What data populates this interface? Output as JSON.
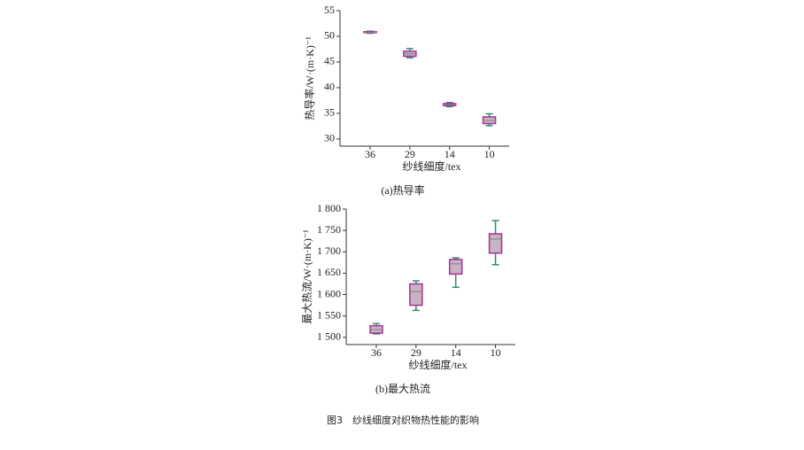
{
  "figure_caption": "图3　纱线细度对织物热性能的影响",
  "chart_data": [
    {
      "type": "box",
      "caption": "(a)热导率",
      "ylabel": "热导率/W·(m·K)⁻¹",
      "xlabel": "纱线细度/tex",
      "categories": [
        "36",
        "29",
        "14",
        "10"
      ],
      "min": [
        50.6,
        45.8,
        36.3,
        32.6
      ],
      "q1": [
        50.7,
        46.1,
        36.5,
        33.0
      ],
      "median": [
        50.8,
        46.6,
        36.7,
        33.6
      ],
      "q3": [
        50.9,
        47.1,
        36.9,
        34.3
      ],
      "max": [
        51.0,
        47.6,
        37.1,
        34.9
      ],
      "ylim": [
        28.6,
        55
      ],
      "yticks": [
        30,
        35,
        40,
        45,
        50,
        55
      ],
      "box_color": "#c8b2c4",
      "edge_color": "#a8309a",
      "whisker_color": "#2e8b6e",
      "median_color": "#8a8a8a"
    },
    {
      "type": "box",
      "caption": "(b)最大热流",
      "ylabel": "最大热流/W·(m·K)⁻¹",
      "xlabel": "纱线细度/tex",
      "categories": [
        "36",
        "29",
        "14",
        "10"
      ],
      "min": [
        1508,
        1563,
        1617,
        1670
      ],
      "q1": [
        1510,
        1575,
        1648,
        1697
      ],
      "median": [
        1518,
        1607,
        1672,
        1730
      ],
      "q3": [
        1527,
        1625,
        1682,
        1742
      ],
      "max": [
        1532,
        1632,
        1686,
        1773
      ],
      "ylim": [
        1483,
        1800
      ],
      "yticks": [
        {
          "value": 1500,
          "label": "1 500"
        },
        {
          "value": 1550,
          "label": "1 550"
        },
        {
          "value": 1600,
          "label": "1 600"
        },
        {
          "value": 1650,
          "label": "1 650"
        },
        {
          "value": 1700,
          "label": "1 700"
        },
        {
          "value": 1750,
          "label": "1 750"
        },
        {
          "value": 1800,
          "label": "1 800"
        }
      ],
      "box_color": "#c8b2c4",
      "edge_color": "#a8309a",
      "whisker_color": "#2e8b6e",
      "median_color": "#8a8a8a"
    }
  ]
}
